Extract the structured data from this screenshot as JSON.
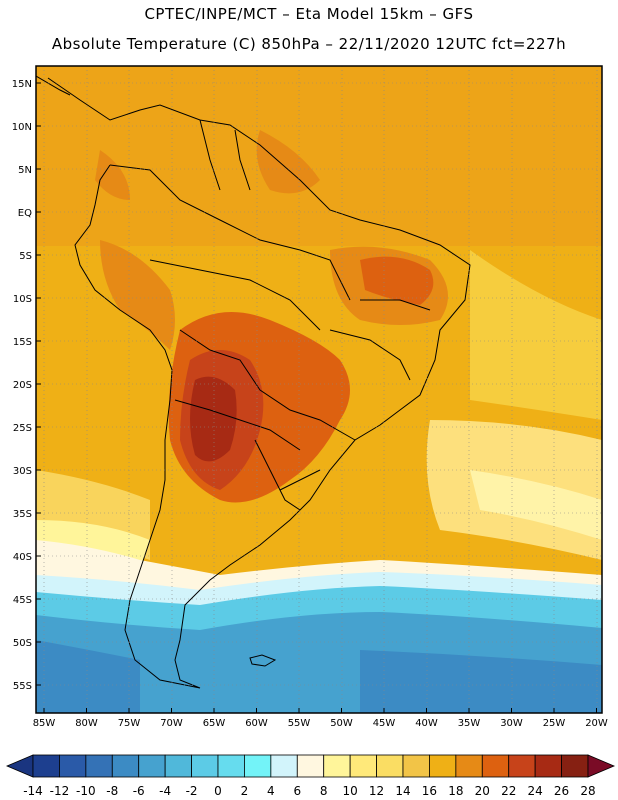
{
  "title_line1": "CPTEC/INPE/MCT –  Eta Model 15km – GFS",
  "title_line2": "Absolute Temperature (C) 850hPa – 22/11/2020 12UTC fct=227h",
  "lat_labels": [
    "15N",
    "10N",
    "5N",
    "EQ",
    "5S",
    "10S",
    "15S",
    "20S",
    "25S",
    "30S",
    "35S",
    "40S",
    "45S",
    "50S",
    "55S"
  ],
  "lon_labels": [
    "85W",
    "80W",
    "75W",
    "70W",
    "65W",
    "60W",
    "55W",
    "50W",
    "45W",
    "40W",
    "35W",
    "30W",
    "25W",
    "20W"
  ],
  "colorbar": {
    "labels": [
      "-14",
      "-12",
      "-10",
      "-8",
      "-6",
      "-4",
      "-2",
      "0",
      "2",
      "4",
      "6",
      "8",
      "10",
      "12",
      "14",
      "16",
      "18",
      "20",
      "22",
      "24",
      "26",
      "28"
    ],
    "colors": [
      "#1d3f8f",
      "#2a5aa8",
      "#3472b6",
      "#3c8bc4",
      "#46a2cf",
      "#50b8da",
      "#5ccbe6",
      "#66dcee",
      "#73f3f8",
      "#d2f4fb",
      "#fff7e0",
      "#fff59a",
      "#ffe97a",
      "#fadd63",
      "#f2c447",
      "#efb016",
      "#e68a16",
      "#dd6110",
      "#c7431a",
      "#a72a14",
      "#862012"
    ],
    "under_color": "#1a3580",
    "over_color": "#7a0b26"
  }
}
